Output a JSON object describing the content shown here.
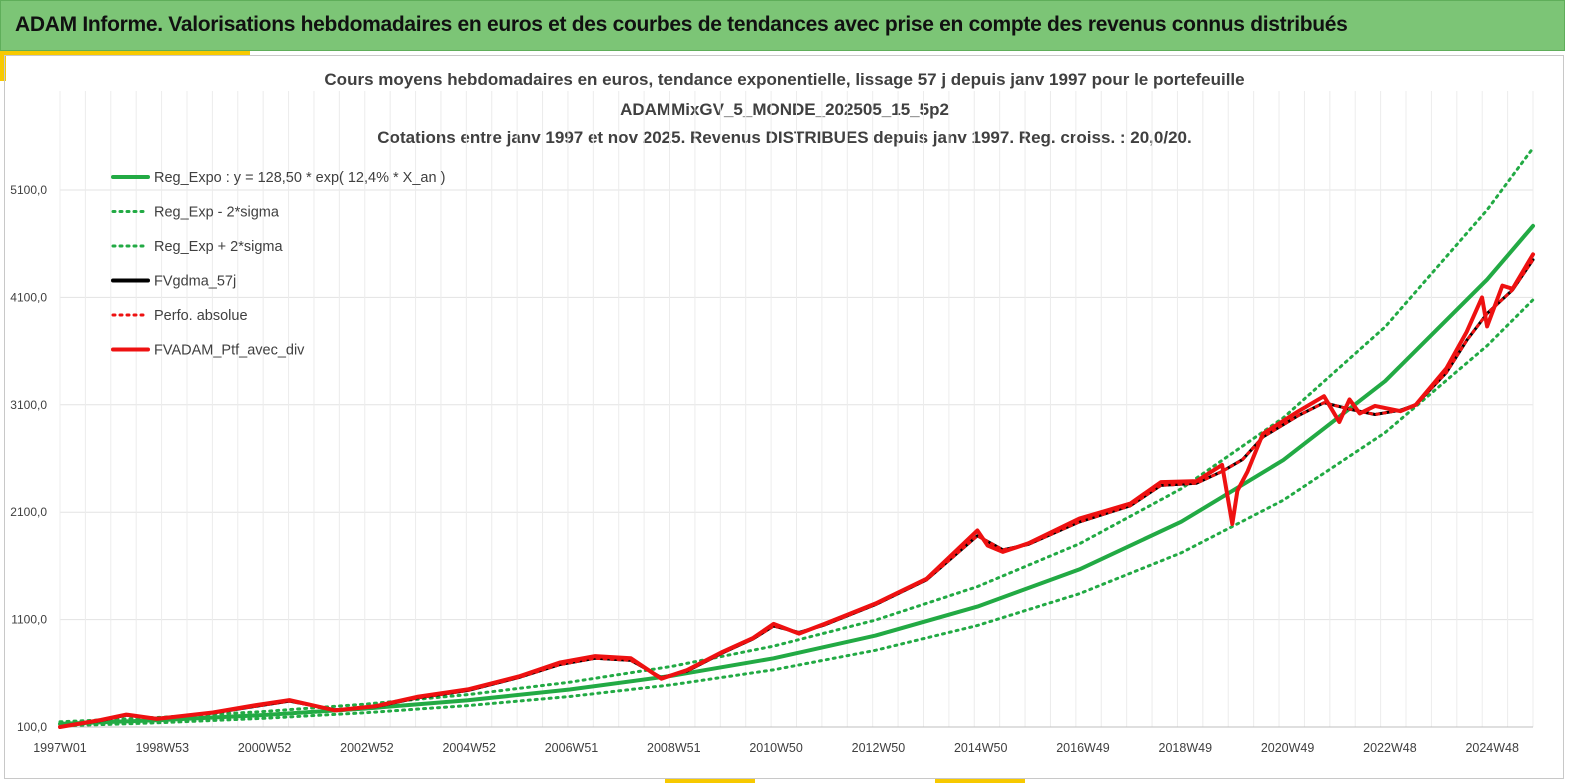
{
  "header": {
    "title": "ADAM Informe. Valorisations hebdomadaires en euros et des courbes de tendances avec prise en compte des revenus connus distribués"
  },
  "chart_data": {
    "type": "line",
    "title_lines": [
      "Cours moyens hebdomadaires  en euros, tendance exponentielle, lissage 57 j depuis janv 1997 pour le portefeuille",
      "ADAMMixGV_5_MONDE_202505_15_5p2",
      "Cotations  entre janv 1997 et nov  2025. Revenus DISTRIBUES depuis janv 1997. Reg. croiss. : 20,0/20."
    ],
    "x_tick_labels": [
      "1997W01",
      "1998W53",
      "2000W52",
      "2002W52",
      "2004W52",
      "2006W51",
      "2008W51",
      "2010W50",
      "2012W50",
      "2014W50",
      "2016W49",
      "2018W49",
      "2020W49",
      "2022W48",
      "2024W48"
    ],
    "y_tick_labels": [
      "100,0",
      "1100,0",
      "2100,0",
      "3100,0",
      "4100,0",
      "5100,0"
    ],
    "x_range": [
      1997.0,
      2025.9
    ],
    "ylim": [
      100,
      5100
    ],
    "grid": true,
    "legend_position": "top-left",
    "series": [
      {
        "name": "Reg_Expo : y = 128,50 * exp( 12,4% *  X_an )",
        "color": "#22aa44",
        "style": "solid",
        "x": [
          1997,
          1999,
          2001,
          2003,
          2005,
          2007,
          2009,
          2011,
          2013,
          2015,
          2017,
          2019,
          2021,
          2023,
          2025,
          2025.9
        ],
        "y": [
          129,
          165,
          212,
          272,
          349,
          449,
          577,
          740,
          951,
          1221,
          1567,
          2012,
          2585,
          3321,
          4266,
          4766
        ]
      },
      {
        "name": "Reg_Exp - 2*sigma",
        "color": "#22aa44",
        "style": "dotted",
        "x": [
          1997,
          1999,
          2001,
          2003,
          2005,
          2007,
          2009,
          2011,
          2013,
          2015,
          2017,
          2019,
          2021,
          2023,
          2025,
          2025.9
        ],
        "y": [
          110,
          141,
          181,
          233,
          299,
          384,
          493,
          633,
          814,
          1045,
          1341,
          1722,
          2212,
          2842,
          3650,
          4078
        ]
      },
      {
        "name": "Reg_Exp + 2*sigma",
        "color": "#22aa44",
        "style": "dotted",
        "x": [
          1997,
          1999,
          2001,
          2003,
          2005,
          2007,
          2009,
          2011,
          2013,
          2015,
          2017,
          2019,
          2021,
          2023,
          2025,
          2025.9
        ],
        "y": [
          148,
          190,
          244,
          313,
          402,
          517,
          664,
          853,
          1095,
          1407,
          1806,
          2319,
          2979,
          3826,
          4915,
          5490
        ]
      },
      {
        "name": "FVgdma_57j",
        "color": "#000000",
        "style": "solid",
        "x": [
          1997,
          1997.8,
          1998.3,
          1998.9,
          2000,
          2000.8,
          2001.5,
          2002.4,
          2003.2,
          2004,
          2005,
          2006,
          2006.8,
          2007.5,
          2008.2,
          2008.8,
          2009.3,
          2010,
          2010.6,
          2011,
          2011.5,
          2012,
          2013,
          2014,
          2015,
          2015.5,
          2016,
          2017,
          2018,
          2018.6,
          2019.3,
          2019.8,
          2020.2,
          2020.6,
          2021.3,
          2021.8,
          2022.3,
          2022.8,
          2023.3,
          2023.6,
          2024.2,
          2024.6,
          2025,
          2025.5,
          2025.9
        ],
        "y": [
          100,
          160,
          210,
          180,
          230,
          290,
          340,
          260,
          290,
          370,
          440,
          560,
          680,
          740,
          720,
          560,
          620,
          790,
          920,
          1040,
          980,
          1050,
          1240,
          1470,
          1880,
          1750,
          1800,
          2010,
          2160,
          2350,
          2370,
          2480,
          2590,
          2800,
          3000,
          3120,
          3060,
          3010,
          3050,
          3100,
          3400,
          3700,
          3950,
          4170,
          4450
        ]
      },
      {
        "name": "Perfo. absolue",
        "color": "#ee1111",
        "style": "dotted",
        "x": [
          1997,
          1997.8,
          1998.3,
          1998.9,
          2000,
          2000.8,
          2001.5,
          2002.4,
          2003.2,
          2004,
          2005,
          2006,
          2006.8,
          2007.5,
          2008.2,
          2008.8,
          2009.3,
          2010,
          2010.6,
          2011,
          2011.5,
          2012,
          2013,
          2014,
          2015,
          2015.5,
          2016,
          2017,
          2018,
          2018.6,
          2019.3,
          2019.8,
          2020.2,
          2020.6,
          2021.3,
          2021.8,
          2022.3,
          2022.8,
          2023.3,
          2023.6,
          2024.2,
          2024.6,
          2025,
          2025.5,
          2025.9
        ],
        "y": [
          100,
          160,
          210,
          180,
          230,
          290,
          340,
          260,
          290,
          370,
          440,
          560,
          680,
          740,
          720,
          560,
          620,
          790,
          920,
          1040,
          980,
          1050,
          1240,
          1470,
          1880,
          1750,
          1800,
          2010,
          2160,
          2350,
          2370,
          2480,
          2590,
          2800,
          3000,
          3120,
          3060,
          3010,
          3050,
          3100,
          3400,
          3700,
          3950,
          4170,
          4450
        ]
      },
      {
        "name": "FVADAM_Ptf_avec_div",
        "color": "#ee1111",
        "style": "solid",
        "x": [
          1997,
          1997.8,
          1998.3,
          1998.9,
          2000,
          2000.8,
          2001.5,
          2002.4,
          2003.2,
          2004,
          2005,
          2006,
          2006.8,
          2007.5,
          2008.2,
          2008.8,
          2009.3,
          2010,
          2010.6,
          2011,
          2011.5,
          2012,
          2013,
          2014,
          2015,
          2015.2,
          2015.5,
          2016,
          2017,
          2018,
          2018.6,
          2019.3,
          2019.8,
          2020,
          2020.1,
          2020.3,
          2020.6,
          2021.3,
          2021.8,
          2022.1,
          2022.3,
          2022.5,
          2022.8,
          2023.3,
          2023.6,
          2024.2,
          2024.6,
          2024.9,
          2025,
          2025.3,
          2025.5,
          2025.9
        ],
        "y": [
          100,
          165,
          215,
          175,
          235,
          300,
          350,
          255,
          295,
          380,
          450,
          570,
          700,
          760,
          740,
          550,
          630,
          800,
          930,
          1060,
          970,
          1060,
          1250,
          1480,
          1930,
          1790,
          1730,
          1810,
          2040,
          2180,
          2380,
          2390,
          2540,
          1990,
          2300,
          2480,
          2830,
          3040,
          3180,
          2940,
          3150,
          3020,
          3090,
          3040,
          3100,
          3440,
          3780,
          4100,
          3830,
          4210,
          4180,
          4500
        ]
      }
    ]
  }
}
